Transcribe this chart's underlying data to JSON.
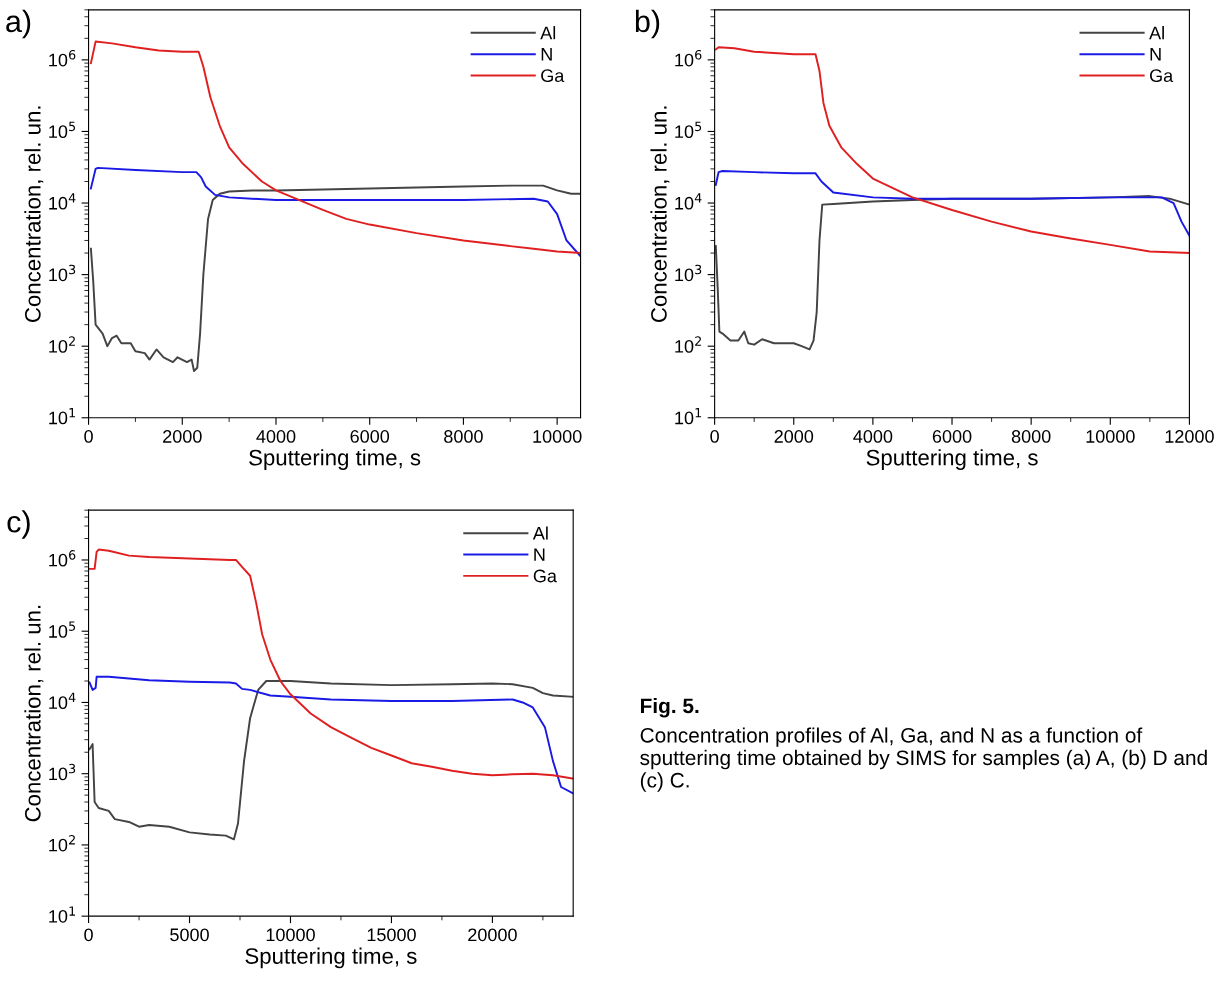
{
  "chart_data": [
    {
      "type": "line",
      "title": "a)",
      "xlabel": "Sputtering time, s",
      "ylabel": "Concentration, rel. un.",
      "log": "y",
      "legend": "top right",
      "grid": false,
      "xlim": [
        0,
        10500
      ],
      "xticks": [
        0,
        2000,
        4000,
        6000,
        8000,
        10000
      ],
      "ylim": [
        10,
        5000000
      ],
      "yticks": [
        {
          "value": 10,
          "label": "10$^{1}$"
        },
        {
          "value": 100,
          "label": "10$^{2}$"
        },
        {
          "value": 1000,
          "label": "10$^{3}$"
        },
        {
          "value": 10000,
          "label": "10$^{4}$"
        },
        {
          "value": 100000,
          "label": "10$^{5}$"
        },
        {
          "value": 1000000,
          "label": "10$^{6}$"
        }
      ],
      "series": [
        {
          "name": "Al",
          "color": "#444444",
          "x": [
            50,
            100,
            150,
            300,
            400,
            500,
            600,
            700,
            900,
            1000,
            1200,
            1300,
            1450,
            1600,
            1800,
            1900,
            2100,
            2200,
            2250,
            2320,
            2380,
            2450,
            2550,
            2650,
            2800,
            3000,
            3500,
            4000,
            5000,
            6000,
            7000,
            8000,
            9000,
            9700,
            10000,
            10300,
            10500
          ],
          "values": [
            2300,
            800,
            200,
            150,
            100,
            130,
            140,
            110,
            110,
            85,
            80,
            65,
            90,
            70,
            60,
            70,
            60,
            65,
            45,
            50,
            150,
            1000,
            6000,
            11000,
            13500,
            14500,
            15000,
            15000,
            15500,
            16000,
            16500,
            17000,
            17500,
            17500,
            15000,
            13500,
            13500
          ]
        },
        {
          "name": "N",
          "color": "#1a1ae6",
          "x": [
            50,
            150,
            200,
            1000,
            2000,
            2300,
            2400,
            2500,
            2700,
            3000,
            4000,
            5000,
            6000,
            7000,
            8000,
            9500,
            9800,
            10000,
            10200,
            10500
          ],
          "values": [
            16000,
            30000,
            31000,
            29000,
            27000,
            27000,
            23000,
            17000,
            13000,
            12000,
            11000,
            11000,
            11000,
            11000,
            11000,
            11500,
            10500,
            7000,
            3000,
            1800
          ]
        },
        {
          "name": "Ga",
          "color": "#e02020",
          "x": [
            50,
            150,
            500,
            1000,
            1500,
            2000,
            2350,
            2450,
            2600,
            2800,
            3000,
            3300,
            3700,
            4000,
            4500,
            5000,
            5500,
            6000,
            7000,
            8000,
            9000,
            9500,
            10000,
            10500
          ],
          "values": [
            900000,
            1800000,
            1700000,
            1500000,
            1350000,
            1300000,
            1300000,
            800000,
            300000,
            120000,
            60000,
            35000,
            20000,
            15000,
            11000,
            8000,
            6000,
            5000,
            3800,
            3000,
            2500,
            2300,
            2100,
            2000
          ]
        }
      ]
    },
    {
      "type": "line",
      "title": "b)",
      "xlabel": "Sputtering time, s",
      "ylabel": "Concentration, rel. un.",
      "log": "y",
      "legend": "top right",
      "grid": false,
      "xlim": [
        0,
        12000
      ],
      "xticks": [
        0,
        2000,
        4000,
        6000,
        8000,
        10000,
        12000
      ],
      "ylim": [
        10,
        5000000
      ],
      "yticks": [
        {
          "value": 10,
          "label": "10$^{1}$"
        },
        {
          "value": 100,
          "label": "10$^{2}$"
        },
        {
          "value": 1000,
          "label": "10$^{3}$"
        },
        {
          "value": 10000,
          "label": "10$^{4}$"
        },
        {
          "value": 100000,
          "label": "10$^{5}$"
        },
        {
          "value": 1000000,
          "label": "10$^{6}$"
        }
      ],
      "series": [
        {
          "name": "Al",
          "color": "#444444",
          "x": [
            30,
            80,
            120,
            200,
            400,
            600,
            750,
            850,
            1000,
            1200,
            1500,
            2000,
            2200,
            2400,
            2500,
            2580,
            2650,
            2720,
            3000,
            4000,
            5000,
            6000,
            8000,
            10000,
            11000,
            11500,
            12000
          ],
          "values": [
            2500,
            600,
            160,
            150,
            120,
            120,
            160,
            110,
            105,
            125,
            110,
            110,
            100,
            90,
            120,
            300,
            3000,
            9500,
            9700,
            10500,
            11000,
            11500,
            11500,
            12000,
            12500,
            11500,
            9500
          ]
        },
        {
          "name": "N",
          "color": "#1a1ae6",
          "x": [
            30,
            100,
            200,
            1000,
            2000,
            2550,
            2700,
            3000,
            4000,
            5000,
            6000,
            8000,
            10000,
            11300,
            11600,
            11800,
            12000
          ],
          "values": [
            18000,
            27000,
            28000,
            27000,
            26000,
            26000,
            20000,
            14000,
            12000,
            11500,
            11500,
            11500,
            12000,
            12000,
            10000,
            5500,
            3500
          ]
        },
        {
          "name": "Ga",
          "color": "#e02020",
          "x": [
            30,
            100,
            500,
            1000,
            2000,
            2550,
            2650,
            2750,
            2900,
            3200,
            3600,
            4000,
            5000,
            6000,
            7000,
            8000,
            9000,
            10000,
            11000,
            12000
          ],
          "values": [
            1400000,
            1500000,
            1450000,
            1300000,
            1200000,
            1200000,
            700000,
            250000,
            120000,
            60000,
            35000,
            22000,
            12000,
            8000,
            5500,
            4000,
            3200,
            2600,
            2100,
            2000
          ]
        }
      ]
    },
    {
      "type": "line",
      "title": "c)",
      "xlabel": "Sputtering time, s",
      "ylabel": "Concentration, rel. un.",
      "log": "y",
      "legend": "top right",
      "grid": false,
      "xlim": [
        0,
        24000
      ],
      "xticks": [
        0,
        5000,
        10000,
        15000,
        20000
      ],
      "ylim": [
        10,
        5000000
      ],
      "yticks": [
        {
          "value": 10,
          "label": "10$^{1}$"
        },
        {
          "value": 100,
          "label": "10$^{2}$"
        },
        {
          "value": 1000,
          "label": "10$^{3}$"
        },
        {
          "value": 10000,
          "label": "10$^{4}$"
        },
        {
          "value": 100000,
          "label": "10$^{5}$"
        },
        {
          "value": 1000000,
          "label": "10$^{6}$"
        }
      ],
      "annotations": [
        "Fig. 5.",
        "Concentration profiles of Al, Ga, and N as a function of sputtering time obtained by SIMS for samples (a) A, (b) D and (c) C."
      ],
      "series": [
        {
          "name": "Al",
          "color": "#444444",
          "x": [
            50,
            200,
            300,
            500,
            1000,
            1300,
            2000,
            2500,
            3000,
            4000,
            5000,
            6000,
            6800,
            7200,
            7400,
            7700,
            8000,
            8400,
            8800,
            10000,
            12000,
            15000,
            18000,
            20000,
            21000,
            22000,
            22500,
            23000,
            24000
          ],
          "values": [
            2200,
            2600,
            400,
            330,
            300,
            230,
            210,
            180,
            190,
            180,
            150,
            140,
            135,
            120,
            200,
            1500,
            6000,
            15000,
            20000,
            20000,
            18500,
            17500,
            18000,
            18500,
            18000,
            16000,
            13500,
            12500,
            12000
          ]
        },
        {
          "name": "N",
          "color": "#1a1ae6",
          "x": [
            50,
            200,
            350,
            400,
            1000,
            3000,
            5000,
            7000,
            7300,
            7600,
            8000,
            9000,
            10000,
            12000,
            15000,
            18000,
            21000,
            21500,
            22000,
            22600,
            23000,
            23400,
            24000
          ],
          "values": [
            19000,
            15000,
            16000,
            23000,
            23000,
            20500,
            19500,
            19000,
            18500,
            15500,
            15000,
            12500,
            12000,
            11000,
            10500,
            10500,
            11000,
            10000,
            8500,
            4500,
            1500,
            650,
            530
          ]
        },
        {
          "name": "Ga",
          "color": "#e02020",
          "x": [
            50,
            300,
            400,
            500,
            1000,
            2000,
            3000,
            5000,
            7000,
            7300,
            7600,
            8000,
            8300,
            8600,
            9000,
            9500,
            10000,
            11000,
            12000,
            13000,
            14000,
            15000,
            16000,
            17000,
            18000,
            19000,
            20000,
            21000,
            22000,
            23000,
            24000
          ],
          "values": [
            750000,
            750000,
            1300000,
            1400000,
            1350000,
            1150000,
            1100000,
            1050000,
            1000000,
            1000000,
            800000,
            600000,
            250000,
            90000,
            40000,
            20000,
            13000,
            7000,
            4500,
            3200,
            2300,
            1800,
            1400,
            1250,
            1100,
            1000,
            950,
            980,
            1000,
            950,
            850
          ]
        }
      ]
    }
  ]
}
